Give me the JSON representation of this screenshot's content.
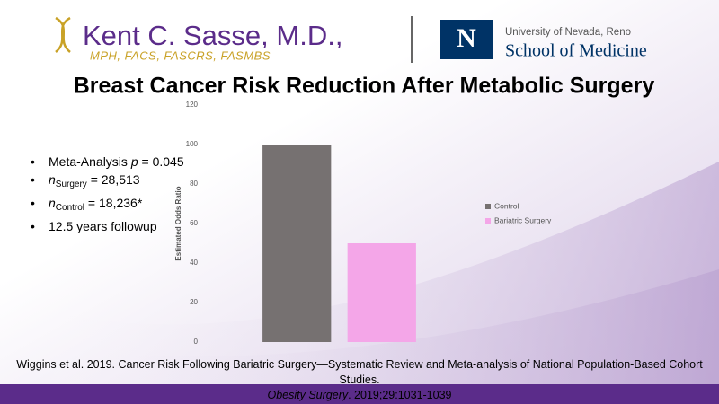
{
  "header": {
    "name": "Kent C. Sasse, M.D.,",
    "credentials": "MPH, FACS, FASCRS, FASMBS",
    "logo_letter": "N",
    "university": "University of Nevada, Reno",
    "school": "School of Medicine"
  },
  "bullets": [
    [
      {
        "text": "Meta-Analysis "
      },
      {
        "text": "p",
        "style": "italic"
      },
      {
        "text": " = 0.045"
      }
    ],
    [
      {
        "text": "n",
        "style": "italic"
      },
      {
        "text": "Surgery",
        "style": "sub"
      },
      {
        "text": " = 28,513"
      }
    ],
    [
      {
        "text": "n",
        "style": "italic"
      },
      {
        "text": "Control",
        "style": "sub"
      },
      {
        "text": " = 18,236*"
      }
    ],
    [
      {
        "text": "12.5 years followup"
      }
    ]
  ],
  "reference": [
    [
      {
        "text": "Wiggins et al. 2019. Cancer Risk Following Bariatric Surgery—Systematic Review and Meta-analysis of National Population-Based Cohort Studies."
      }
    ],
    [
      {
        "text": "Obesity Surgery",
        "style": "italic"
      },
      {
        "text": ". 2019;29:1031-1039"
      }
    ]
  ],
  "chart_data": {
    "type": "bar",
    "title": "Breast Cancer Risk Reduction After Metabolic Surgery",
    "ylabel": "Estimated Odds Ratio",
    "categories": [
      null
    ],
    "series": [
      {
        "name": "Control",
        "color": "#767171",
        "values": [
          100
        ]
      },
      {
        "name": "Bariatric Surgery",
        "color": "#f4a6e8",
        "values": [
          50
        ]
      }
    ],
    "ylim": [
      0,
      120
    ],
    "yticks": [
      0,
      20,
      40,
      60,
      80,
      100,
      120
    ],
    "grid": false,
    "legend": "right"
  }
}
